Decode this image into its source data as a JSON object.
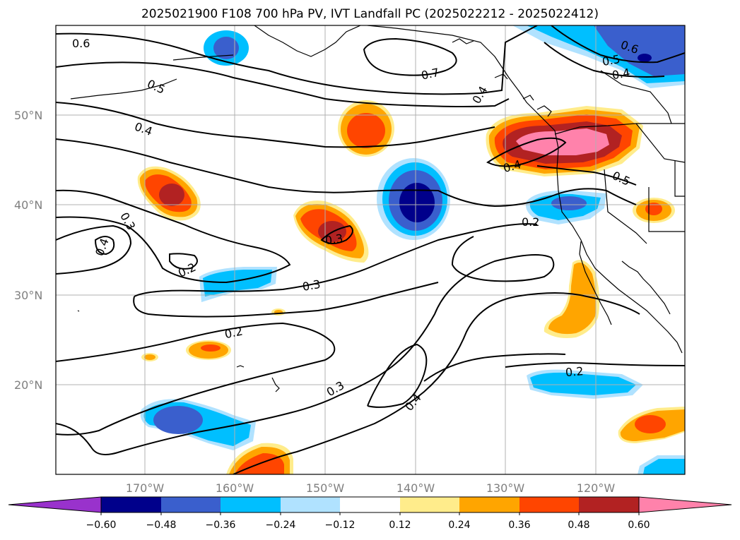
{
  "title": "2025021900 F108 700 hPa PV, IVT Landfall PC (2025022212 - 2025022412)",
  "lat_labels": [
    "50°N",
    "40°N",
    "30°N",
    "20°N"
  ],
  "lon_labels": [
    "170°W",
    "160°W",
    "150°W",
    "140°W",
    "130°W",
    "120°W"
  ],
  "contour_labels": [
    "0.6",
    "0.5",
    "0.4",
    "0.3",
    "0.4",
    "0.2",
    "0.3",
    "0.2",
    "0.3",
    "0.7",
    "0.4",
    "0.3",
    "0.6",
    "0.5",
    "0.4",
    "0.4",
    "0.5",
    "0.2",
    "0.2",
    "0.4"
  ],
  "colorbar": {
    "ticks": [
      "−0.60",
      "−0.48",
      "−0.36",
      "−0.24",
      "−0.12",
      "0.12",
      "0.24",
      "0.36",
      "0.48",
      "0.60"
    ],
    "colors": [
      "#9932cc",
      "#00008b",
      "#3a5fcd",
      "#00bfff",
      "#b0e2ff",
      "#ffffff",
      "#ffec8b",
      "#ffa500",
      "#ff4500",
      "#b22222",
      "#ff82ab"
    ]
  },
  "palette": {
    "land_line": "#000000",
    "grid": "#b0b0b0",
    "contour": "#000000"
  }
}
